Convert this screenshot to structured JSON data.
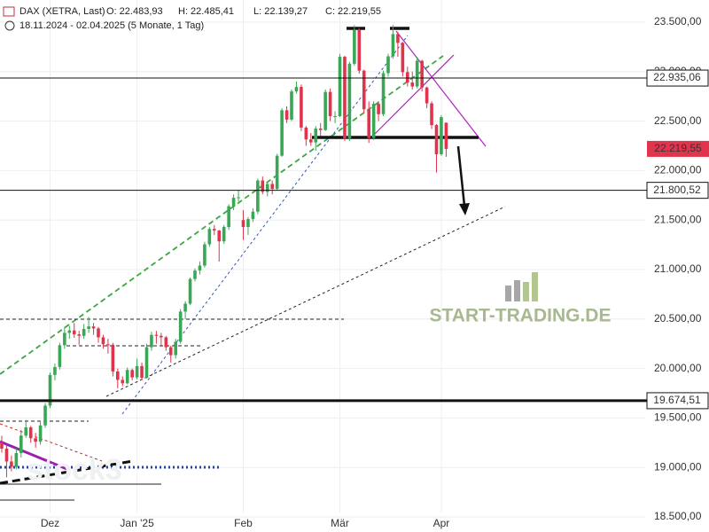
{
  "chart_data": {
    "type": "candlestick",
    "header": {
      "symbol": "DAX (XETRA, Last)",
      "open": "O: 22.483,93",
      "high": "H: 22.485,41",
      "low": "L: 22.139,27",
      "close": "C: 22.219,55",
      "range": "18.11.2024 - 02.04.2025 (5 Monate, 1 Tag)"
    },
    "watermark": "START-TRADING.DE",
    "watermark2": "stock3",
    "categories": [
      null,
      null,
      null,
      null,
      null,
      null,
      null,
      null,
      null,
      null,
      "Dez",
      null,
      null,
      null,
      null,
      null,
      null,
      null,
      null,
      null,
      null,
      null,
      null,
      null,
      null,
      null,
      null,
      null,
      "Jan '25",
      null,
      null,
      null,
      null,
      null,
      null,
      null,
      null,
      null,
      null,
      null,
      null,
      null,
      null,
      null,
      null,
      null,
      null,
      null,
      null,
      null,
      "Feb",
      null,
      null,
      null,
      null,
      null,
      null,
      null,
      null,
      null,
      null,
      null,
      null,
      null,
      null,
      null,
      null,
      null,
      null,
      null,
      "Mär",
      null,
      null,
      null,
      null,
      null,
      null,
      null,
      null,
      null,
      null,
      null,
      null,
      null,
      null,
      null,
      null,
      null,
      null,
      null,
      null,
      "Apr",
      null
    ],
    "open": [
      19250,
      19190,
      19060,
      19005,
      19145,
      19322,
      19405,
      19295,
      19260,
      19425,
      19625,
      19935,
      20015,
      20235,
      20360,
      20385,
      20345,
      20330,
      20400,
      20425,
      20405,
      20315,
      20245,
      20240,
      19970,
      19885,
      19850,
      19985,
      19910,
      20025,
      19905,
      20215,
      20340,
      20330,
      20315,
      20215,
      20135,
      20270,
      20575,
      20655,
      20905,
      20990,
      21040,
      21255,
      21410,
      21395,
      21285,
      21430,
      21640,
      21725,
      21500,
      21430,
      21510,
      21585,
      21900,
      21785,
      21865,
      21815,
      22150,
      22610,
      22515,
      22800,
      22845,
      22435,
      22315,
      22285,
      22425,
      22410,
      22795,
      22550,
      22550,
      23150,
      22325,
      23080,
      23420,
      23010,
      22620,
      22330,
      22675,
      22570,
      22985,
      23155,
      23380,
      23290,
      22995,
      22890,
      22850,
      23110,
      22840,
      22680,
      22460,
      22165,
      22483.93
    ],
    "high": [
      19320,
      19230,
      19120,
      19190,
      19380,
      19480,
      19420,
      19350,
      19460,
      19650,
      19960,
      20050,
      20260,
      20420,
      20430,
      20460,
      20380,
      20450,
      20520,
      20460,
      20420,
      20340,
      20300,
      20260,
      20000,
      19920,
      20010,
      20000,
      20100,
      20060,
      20250,
      20370,
      20380,
      20360,
      20330,
      20230,
      20300,
      20600,
      20680,
      20920,
      21010,
      21080,
      21280,
      21430,
      21450,
      21400,
      21450,
      21660,
      21760,
      21800,
      21600,
      21530,
      21620,
      21920,
      21940,
      21880,
      21900,
      22170,
      22630,
      22650,
      22820,
      22900,
      22870,
      22450,
      22380,
      22450,
      22480,
      22820,
      22830,
      22600,
      23180,
      23160,
      23100,
      23470,
      23440,
      23020,
      22700,
      22700,
      22700,
      23010,
      23180,
      23470,
      23400,
      23300,
      23050,
      23000,
      23150,
      23120,
      22850,
      22700,
      22470,
      22560,
      22485.41
    ],
    "low": [
      19150,
      18900,
      18960,
      18980,
      19100,
      19300,
      19250,
      19200,
      19230,
      19400,
      19600,
      19880,
      19990,
      20200,
      20300,
      20310,
      20240,
      20300,
      20360,
      20340,
      20260,
      20200,
      20150,
      19920,
      19800,
      19820,
      19840,
      19880,
      19890,
      19880,
      19900,
      20180,
      20250,
      20220,
      20180,
      20060,
      20100,
      20250,
      20500,
      20640,
      20880,
      20950,
      21020,
      21230,
      21350,
      21080,
      21260,
      21400,
      21600,
      21690,
      21300,
      21350,
      21480,
      21560,
      21760,
      21740,
      21760,
      21800,
      22140,
      22480,
      22500,
      22780,
      22400,
      22250,
      22250,
      22200,
      22350,
      22400,
      22500,
      22480,
      22540,
      22300,
      22300,
      23060,
      22980,
      22580,
      22280,
      22310,
      22500,
      22550,
      22950,
      23130,
      23150,
      22950,
      22850,
      22820,
      22830,
      22800,
      22630,
      22420,
      21980,
      22150,
      22139.27
    ],
    "close": [
      19190,
      19060,
      19005,
      19145,
      19322,
      19405,
      19295,
      19260,
      19425,
      19625,
      19935,
      20015,
      20235,
      20360,
      20385,
      20345,
      20330,
      20400,
      20425,
      20405,
      20315,
      20245,
      20240,
      19970,
      19885,
      19850,
      19985,
      19910,
      20025,
      19905,
      20215,
      20340,
      20330,
      20315,
      20215,
      20135,
      20270,
      20575,
      20655,
      20905,
      20990,
      21040,
      21255,
      21410,
      21395,
      21285,
      21430,
      21640,
      21725,
      21730,
      21430,
      21510,
      21585,
      21900,
      21785,
      21865,
      21815,
      22150,
      22610,
      22515,
      22800,
      22845,
      22435,
      22315,
      22285,
      22425,
      22410,
      22795,
      22550,
      22550,
      23150,
      22325,
      23080,
      23420,
      23010,
      22620,
      22330,
      22675,
      22570,
      22985,
      23155,
      23380,
      23290,
      22995,
      22890,
      22850,
      23110,
      22840,
      22680,
      22460,
      22165,
      22540,
      22219.55
    ],
    "up_color": "#3aa757",
    "down_color": "#e0344d",
    "ylim": [
      18500,
      23500
    ],
    "yticks": [
      {
        "value": 18500,
        "label": "18.500,00"
      },
      {
        "value": 19000,
        "label": "19.000,00"
      },
      {
        "value": 19500,
        "label": "19.500,00"
      },
      {
        "value": 20000,
        "label": "20.000,00"
      },
      {
        "value": 20500,
        "label": "20.500,00"
      },
      {
        "value": 21000,
        "label": "21.000,00"
      },
      {
        "value": 21500,
        "label": "21.500,00"
      },
      {
        "value": 22000,
        "label": "22.000,00"
      },
      {
        "value": 22500,
        "label": "22.500,00"
      },
      {
        "value": 23000,
        "label": "23.000,00"
      },
      {
        "value": 23500,
        "label": "23.500,00"
      }
    ],
    "grid": true,
    "levels": [
      {
        "value": 22935.06,
        "label": "22.935,06",
        "line_width": 1
      },
      {
        "value": 21800.52,
        "label": "21.800,52",
        "line_width": 1
      },
      {
        "value": 19674.51,
        "label": "19.674,51",
        "line_width": 3
      }
    ],
    "price_tag": {
      "value": 22219.55,
      "label": "22.219,55",
      "color": "#e0344d"
    }
  }
}
